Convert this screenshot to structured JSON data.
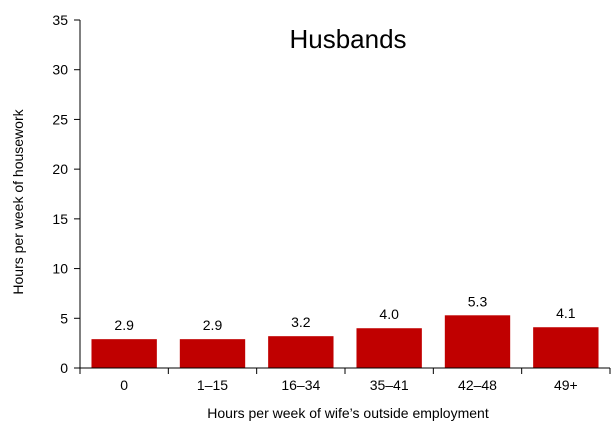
{
  "chart_data": {
    "type": "bar",
    "title": "Husbands",
    "xlabel": "Hours per week of wife’s outside employment",
    "ylabel": "Hours per week of housework",
    "categories": [
      "0",
      "1–15",
      "16–34",
      "35–41",
      "42–48",
      "49+"
    ],
    "values": [
      2.9,
      2.9,
      3.2,
      4.0,
      5.3,
      4.1
    ],
    "data_labels": [
      "2.9",
      "2.9",
      "3.2",
      "4.0",
      "5.3",
      "4.1"
    ],
    "yticks": [
      "0",
      "5",
      "10",
      "15",
      "20",
      "25",
      "30",
      "35"
    ],
    "ylim": [
      0,
      35
    ],
    "grid": false,
    "bar_color": "#c00000"
  }
}
